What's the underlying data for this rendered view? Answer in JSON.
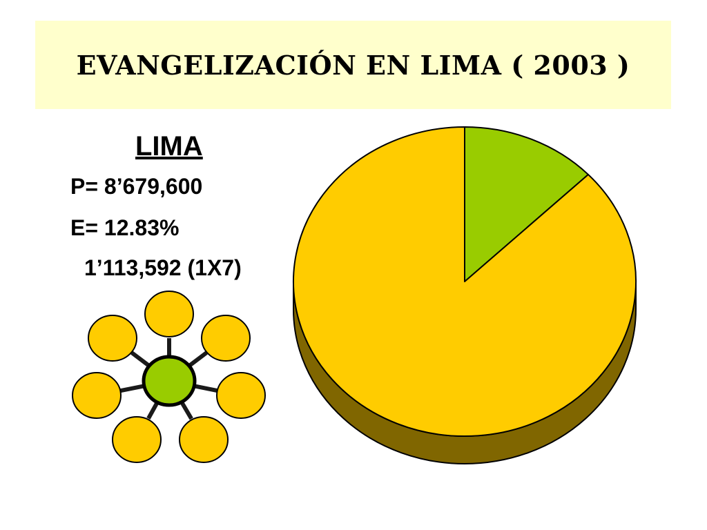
{
  "title": "EVANGELIZACIÓN EN LIMA ( 2003 )",
  "info": {
    "heading": "LIMA",
    "population": "P= 8’679,600",
    "evangelized": "E= 12.83%",
    "count": "1’113,592 (1X7)"
  },
  "chart_data": {
    "type": "pie",
    "title": "",
    "slices": [
      {
        "label": "",
        "value": 12.83,
        "color": "#99cc00"
      },
      {
        "label": "",
        "value": 87.17,
        "color": "#ffcc00"
      }
    ],
    "side_color": "#806600",
    "style": "3d"
  },
  "cell_diagram": {
    "center_color": "#99cc00",
    "satellite_color": "#ffcc00",
    "satellite_count": 7
  },
  "colors": {
    "title_background": "#ffffcc",
    "text": "#000000"
  }
}
